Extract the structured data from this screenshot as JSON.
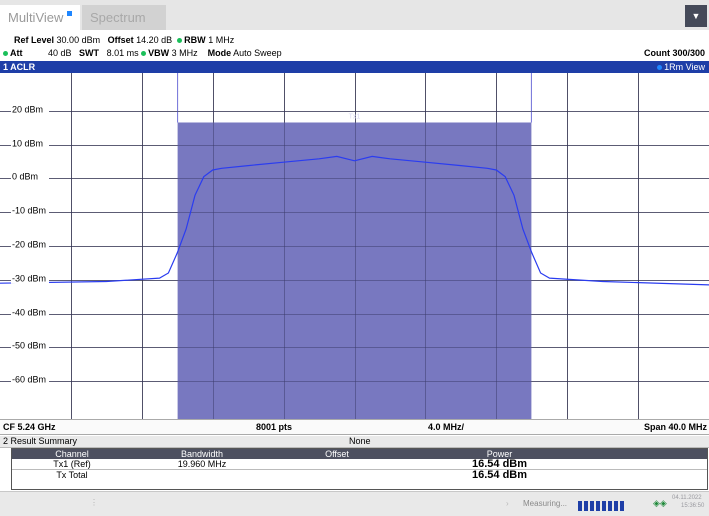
{
  "tabs": [
    {
      "label": "MultiView"
    },
    {
      "label": "Spectrum"
    }
  ],
  "header": {
    "ref_level_label": "Ref Level",
    "ref_level_value": "30.00 dBm",
    "offset_label": "Offset",
    "offset_value": "14.20 dB",
    "rbw_label": "RBW",
    "rbw_value": "1 MHz",
    "att_label": "Att",
    "att_value": "40 dB",
    "swt_label": "SWT",
    "swt_value": "8.01 ms",
    "vbw_label": "VBW",
    "vbw_value": "3 MHz",
    "mode_label": "Mode",
    "mode_value": "Auto Sweep",
    "count": "Count 300/300"
  },
  "window": {
    "title": "1 ACLR",
    "trace": "1Rm View"
  },
  "chart_data": {
    "type": "line",
    "y_ticks": [
      "20 dBm",
      "10 dBm",
      "0 dBm",
      "-10 dBm",
      "-20 dBm",
      "-30 dBm",
      "-40 dBm",
      "-50 dBm",
      "-60 dBm"
    ],
    "y_tick_values": [
      20,
      10,
      0,
      -10,
      -20,
      -30,
      -40,
      -50,
      -60
    ],
    "ylim": [
      -70,
      30
    ],
    "xlim": [
      -20,
      20
    ],
    "channel_label": "Tx1",
    "channel_power_dbm": 16.54,
    "channel_bandwidth_mhz": 19.96,
    "series": [
      {
        "x": [
          -20,
          -14,
          -11,
          -10.5,
          -10,
          -9.5,
          -9,
          -8.5,
          -8,
          -7.5,
          -6,
          -4,
          -2,
          -1,
          0,
          1,
          2,
          4,
          6,
          7.5,
          8,
          8.5,
          9,
          9.5,
          10,
          10.5,
          11,
          14,
          20
        ],
        "y": [
          -31,
          -30.5,
          -29.5,
          -28,
          -22,
          -15,
          -5,
          0.5,
          2.5,
          3,
          3.8,
          4.8,
          5.8,
          6.5,
          5.2,
          6.5,
          5.8,
          4.8,
          3.8,
          3,
          2.5,
          0.5,
          -5,
          -15,
          -22,
          -28,
          -29.5,
          -30.5,
          -31.5
        ]
      }
    ]
  },
  "footer": {
    "cf": "CF 5.24 GHz",
    "pts": "8001 pts",
    "div": "4.0 MHz/",
    "span": "Span 40.0 MHz"
  },
  "results": {
    "title": "2 Result Summary",
    "none_label": "None",
    "headers": [
      "Channel",
      "Bandwidth",
      "Offset",
      "Power"
    ],
    "rows": [
      {
        "channel": "Tx1 (Ref)",
        "bandwidth": "19.960 MHz",
        "offset": "",
        "power": "16.54 dBm"
      },
      {
        "channel": "Tx Total",
        "bandwidth": "",
        "offset": "",
        "power": "16.54 dBm"
      }
    ]
  },
  "status": {
    "measuring": "Measuring...",
    "date": "04.11.2022",
    "time": "15:36:50"
  }
}
